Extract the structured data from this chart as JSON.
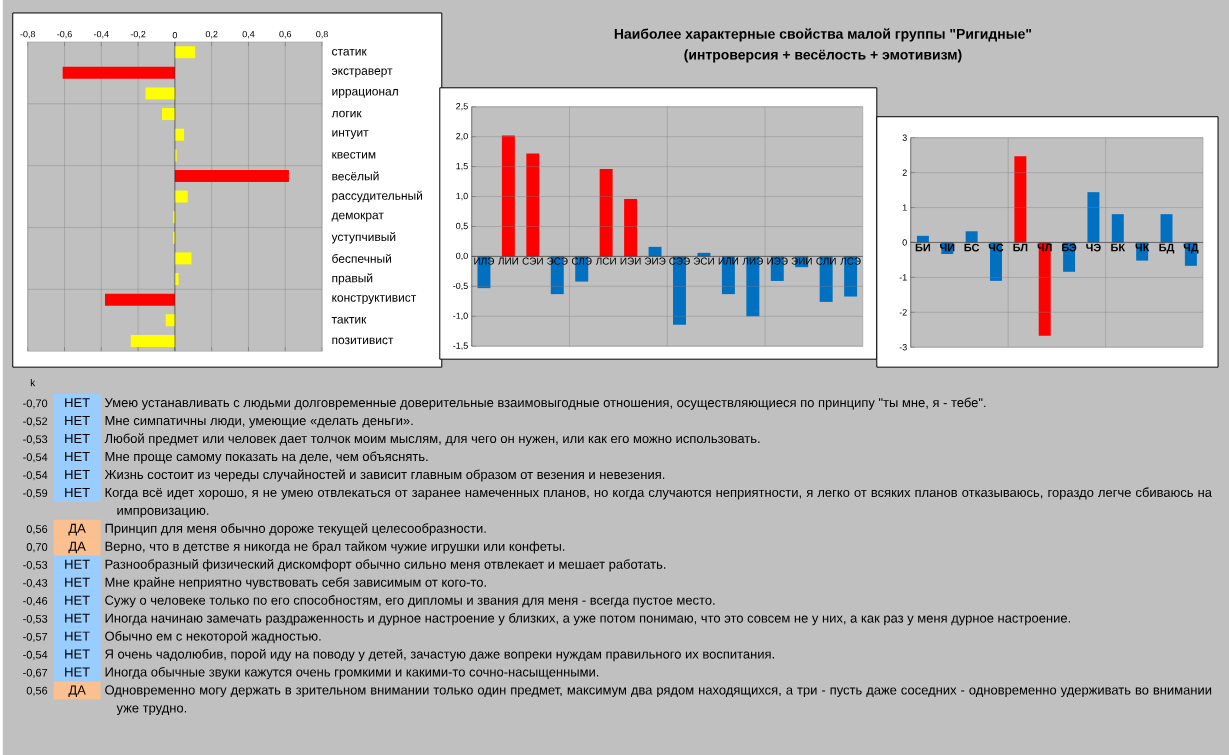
{
  "chart_data": [
    {
      "type": "bar",
      "orientation": "horizontal",
      "grid": true,
      "categories": [
        "статик",
        "экстраверт",
        "иррационал",
        "логик",
        "интуит",
        "квестим",
        "весёлый",
        "рассудительный",
        "демократ",
        "уступчивый",
        "беспечный",
        "правый",
        "конструктивист",
        "тактик",
        "позитивист"
      ],
      "values": [
        0.11,
        -0.61,
        -0.16,
        -0.07,
        0.05,
        0.01,
        0.62,
        0.07,
        -0.01,
        -0.01,
        0.09,
        0.02,
        -0.38,
        -0.05,
        -0.24
      ],
      "colors": [
        "#ffff00",
        "#ff0000",
        "#ffff00",
        "#ffff00",
        "#ffff00",
        "#ffff00",
        "#ff0000",
        "#ffff00",
        "#ffff00",
        "#ffff00",
        "#ffff00",
        "#ffff00",
        "#ff0000",
        "#ffff00",
        "#ffff00"
      ],
      "xlim": [
        -0.8,
        0.8
      ],
      "xticks": [
        {
          "value": -0.8,
          "label": "-0,8"
        },
        {
          "value": -0.6,
          "label": "-0,6"
        },
        {
          "value": -0.4,
          "label": "-0,4"
        },
        {
          "value": -0.2,
          "label": "-0,2"
        },
        0,
        {
          "value": 0.2,
          "label": "0,2"
        },
        {
          "value": 0.4,
          "label": "0,4"
        },
        {
          "value": 0.6,
          "label": "0,6"
        },
        {
          "value": 0.8,
          "label": "0,8"
        }
      ]
    },
    {
      "type": "bar",
      "grid": true,
      "title": "Наиболее характерные свойства малой группы \"Ригидные\"",
      "subtitle": "(интроверсия + весёлость + эмотивизм)",
      "categories": [
        "ИЛЭ",
        "ЛИИ",
        "СЭИ",
        "ЭСЭ",
        "СЛЭ",
        "ЛСИ",
        "ИЭИ",
        "ЭИЭ",
        "СЭЭ",
        "ЭСИ",
        "ИЛИ",
        "ЛИЭ",
        "ИЭЭ",
        "ЭИИ",
        "СЛИ",
        "ЛСЭ"
      ],
      "values": [
        -0.53,
        2.02,
        1.72,
        -0.63,
        -0.42,
        1.46,
        0.96,
        0.16,
        -1.14,
        0.06,
        -0.63,
        -1.0,
        -0.41,
        -0.18,
        -0.76,
        -0.67
      ],
      "colors": [
        "#0070c0",
        "#ff0000",
        "#ff0000",
        "#0070c0",
        "#0070c0",
        "#ff0000",
        "#ff0000",
        "#0070c0",
        "#0070c0",
        "#0070c0",
        "#0070c0",
        "#0070c0",
        "#0070c0",
        "#0070c0",
        "#0070c0",
        "#0070c0"
      ],
      "ylim": [
        -1.5,
        2.5
      ],
      "yticks": [
        {
          "value": -1.5,
          "label": "-1,5"
        },
        {
          "value": -1.0,
          "label": "-1,0"
        },
        {
          "value": -0.5,
          "label": "-0,5"
        },
        {
          "value": 0,
          "label": "0,0"
        },
        {
          "value": 0.5,
          "label": "0,5"
        },
        {
          "value": 1.0,
          "label": "1,0"
        },
        {
          "value": 1.5,
          "label": "1,5"
        },
        {
          "value": 2.0,
          "label": "2,0"
        },
        {
          "value": 2.5,
          "label": "2,5"
        }
      ]
    },
    {
      "type": "bar",
      "grid": true,
      "categories": [
        "БИ",
        "ЧИ",
        "БС",
        "ЧС",
        "БЛ",
        "ЧЛ",
        "БЭ",
        "ЧЭ",
        "БК",
        "ЧК",
        "БД",
        "ЧД"
      ],
      "values": [
        0.19,
        -0.33,
        0.32,
        -1.1,
        2.47,
        -2.67,
        -0.84,
        1.44,
        0.81,
        -0.52,
        0.81,
        -0.67
      ],
      "colors": [
        "#0070c0",
        "#0070c0",
        "#0070c0",
        "#0070c0",
        "#ff0000",
        "#ff0000",
        "#0070c0",
        "#0070c0",
        "#0070c0",
        "#0070c0",
        "#0070c0",
        "#0070c0"
      ],
      "ylim": [
        -3,
        3
      ],
      "yticks": [
        -3,
        -2,
        -1,
        0,
        1,
        2,
        3
      ]
    },
    {
      "type": "other",
      "ylabel": "k",
      "value_labels": [
        "-0,70",
        "-0,52",
        "-0,53",
        "-0,54",
        "-0,54",
        "-0,59",
        "0,56",
        "0,70",
        "-0,53",
        "-0,43",
        "-0,46",
        "-0,53",
        "-0,57",
        "-0,54",
        "-0,67",
        "0,56"
      ],
      "annotations": [
        "НЕТ",
        "НЕТ",
        "НЕТ",
        "НЕТ",
        "НЕТ",
        "НЕТ",
        "ДА",
        "ДА",
        "НЕТ",
        "НЕТ",
        "НЕТ",
        "НЕТ",
        "НЕТ",
        "НЕТ",
        "НЕТ",
        "ДА"
      ],
      "colors": [
        "#99ccff",
        "#99ccff",
        "#99ccff",
        "#99ccff",
        "#99ccff",
        "#99ccff",
        "#fac090",
        "#fac090",
        "#99ccff",
        "#99ccff",
        "#99ccff",
        "#99ccff",
        "#99ccff",
        "#99ccff",
        "#99ccff",
        "#fac090"
      ],
      "categories": [
        "Умею устанавливать с людьми долговременные доверительные взаимовыгодные отношения, осуществляющиеся по принципу \"ты мне, я - тебе\".",
        "Мне симпатичны люди, умеющие «делать деньги».",
        "Любой предмет или человек дает толчок моим мыслям, для чего он нужен, или как его можно использовать.",
        "Мне проще самому показать на деле, чем объяснять.",
        "Жизнь состоит из череды случайностей и зависит главным образом от везения и невезения.",
        "Когда всё идет хорошо, я не умею отвлекаться от заранее намеченных планов, но когда случаются неприятности, я легко от всяких планов отказываюсь, гораздо легче сбиваюсь на импровизацию.",
        "Принцип для меня обычно дороже текущей целесообразности.",
        "Верно, что в детстве я никогда не брал тайком чужие игрушки или конфеты.",
        "Разнообразный физический дискомфорт обычно сильно меня отвлекает и мешает работать.",
        "Мне крайне неприятно чувствовать себя зависимым от кого-то.",
        "Сужу о человеке только по его способностям, его дипломы и звания для меня - всегда пустое место.",
        "Иногда начинаю замечать раздраженность и дурное настроение у близких, а уже потом понимаю, что это совсем не у них, а как раз у меня дурное настроение.",
        "Обычно ем с некоторой жадностью.",
        "Я очень чадолюбив, порой иду на поводу у детей, зачастую даже вопреки нуждам правильного их воспитания.",
        "Иногда обычные звуки кажутся очень громкими и какими-то сочно-насыщенными.",
        "Одновременно могу держать в зрительном внимании только один предмет, максимум два рядом находящихся, а три - пусть даже соседних - одновременно удерживать во внимании уже трудно."
      ]
    }
  ]
}
